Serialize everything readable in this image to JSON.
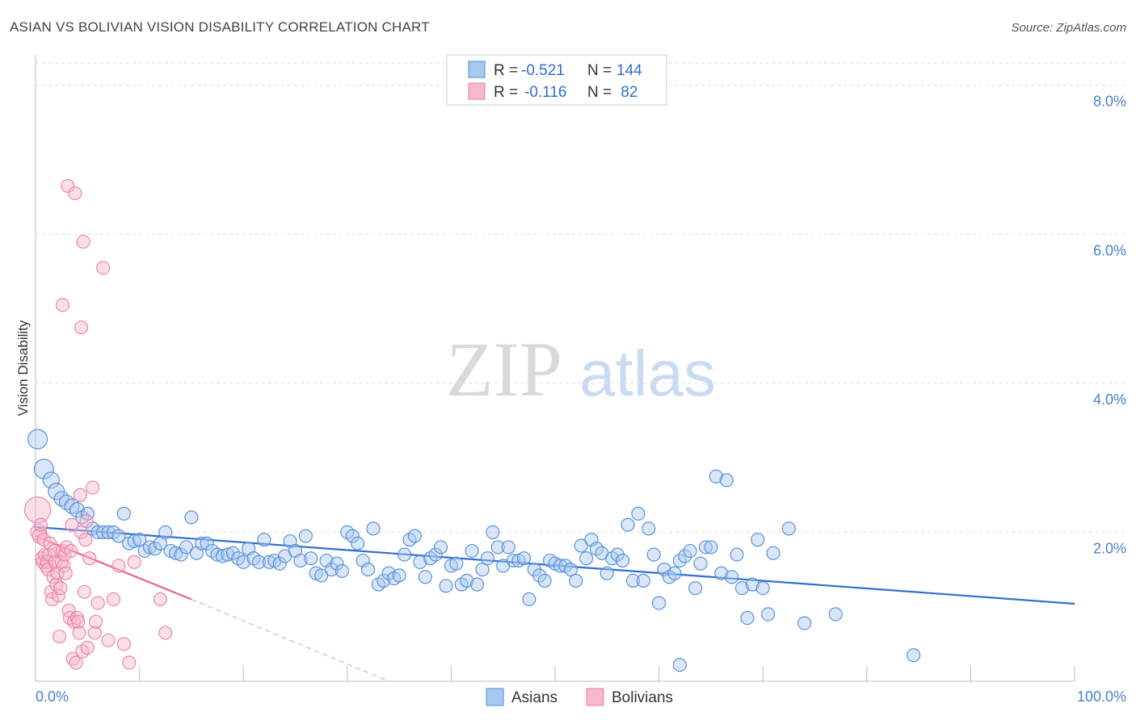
{
  "chart_data": {
    "type": "scatter",
    "title": "ASIAN VS BOLIVIAN VISION DISABILITY CORRELATION CHART",
    "source": "Source: ZipAtlas.com",
    "ylabel": "Vision Disability",
    "xlabel": "",
    "xlim": [
      0,
      100
    ],
    "ylim": [
      0,
      8.3
    ],
    "y_ticks": [
      {
        "value": 2,
        "label": "2.0%"
      },
      {
        "value": 4,
        "label": "4.0%"
      },
      {
        "value": 6,
        "label": "6.0%"
      },
      {
        "value": 8,
        "label": "8.0%"
      }
    ],
    "x_tick_labels": {
      "left": "0.0%",
      "right": "100.0%"
    },
    "x_minor_ticks": [
      10,
      20,
      30,
      40,
      50,
      60,
      70,
      80,
      90,
      100
    ],
    "grid": true,
    "watermark": {
      "zip": "ZIP",
      "atlas": "atlas"
    },
    "colors": {
      "asian_fill": "#a9c8f0",
      "asian_stroke": "#4f8bd9",
      "asian_line": "#2f6ed3",
      "bolivian_fill": "#f6b8cc",
      "bolivian_stroke": "#ea7fa3",
      "bolivian_line": "#e8608f",
      "grid": "#dddddd",
      "axis_text": "#4a7fd0"
    },
    "legend": {
      "rows": [
        {
          "r_label": "R = ",
          "r_value": "-0.521",
          "n_label": "N = ",
          "n_value": "144"
        },
        {
          "r_label": "R = ",
          "r_value": "-0.116",
          "n_label": "N = ",
          "n_value": " 82"
        }
      ]
    },
    "series": [
      {
        "name": "Asians",
        "trend": {
          "x": [
            0,
            100
          ],
          "y": [
            2.07,
            1.04
          ],
          "dashed_extension": null
        },
        "points": [
          [
            0.2,
            3.25,
            12
          ],
          [
            0.8,
            2.85,
            12
          ],
          [
            1.5,
            2.7,
            10
          ],
          [
            2.0,
            2.55,
            10
          ],
          [
            2.5,
            2.45,
            9
          ],
          [
            3.0,
            2.4,
            9
          ],
          [
            3.5,
            2.35,
            9
          ],
          [
            4.0,
            2.3,
            9
          ],
          [
            4.5,
            2.2,
            8
          ],
          [
            5.0,
            2.25,
            8
          ],
          [
            5.5,
            2.05,
            8
          ],
          [
            6.0,
            2.0,
            8
          ],
          [
            6.5,
            2.0,
            8
          ],
          [
            7.0,
            2.0,
            8
          ],
          [
            7.5,
            2.0,
            8
          ],
          [
            8.0,
            1.95,
            8
          ],
          [
            8.5,
            2.25,
            8
          ],
          [
            9.0,
            1.85,
            8
          ],
          [
            9.5,
            1.88,
            8
          ],
          [
            10.0,
            1.9,
            8
          ],
          [
            10.5,
            1.75,
            8
          ],
          [
            11.0,
            1.8,
            8
          ],
          [
            11.5,
            1.78,
            8
          ],
          [
            12.0,
            1.85,
            8
          ],
          [
            12.5,
            2.0,
            8
          ],
          [
            13.0,
            1.75,
            8
          ],
          [
            13.5,
            1.72,
            8
          ],
          [
            14.0,
            1.7,
            8
          ],
          [
            14.5,
            1.8,
            8
          ],
          [
            15.0,
            2.2,
            8
          ],
          [
            15.5,
            1.72,
            8
          ],
          [
            16.0,
            1.85,
            8
          ],
          [
            16.5,
            1.85,
            8
          ],
          [
            17.0,
            1.75,
            8
          ],
          [
            17.5,
            1.7,
            8
          ],
          [
            18.0,
            1.68,
            8
          ],
          [
            18.5,
            1.7,
            8
          ],
          [
            19.0,
            1.72,
            8
          ],
          [
            19.5,
            1.65,
            8
          ],
          [
            20.0,
            1.6,
            8
          ],
          [
            20.5,
            1.78,
            8
          ],
          [
            21.0,
            1.65,
            8
          ],
          [
            21.5,
            1.6,
            8
          ],
          [
            22.0,
            1.9,
            8
          ],
          [
            22.5,
            1.6,
            8
          ],
          [
            23.0,
            1.62,
            8
          ],
          [
            23.5,
            1.58,
            8
          ],
          [
            24.0,
            1.68,
            8
          ],
          [
            24.5,
            1.88,
            8
          ],
          [
            25.0,
            1.75,
            8
          ],
          [
            25.5,
            1.62,
            8
          ],
          [
            26.0,
            1.95,
            8
          ],
          [
            26.5,
            1.65,
            8
          ],
          [
            27.0,
            1.45,
            8
          ],
          [
            27.5,
            1.42,
            8
          ],
          [
            28.0,
            1.62,
            8
          ],
          [
            28.5,
            1.5,
            8
          ],
          [
            29.0,
            1.58,
            8
          ],
          [
            29.5,
            1.48,
            8
          ],
          [
            30.0,
            2.0,
            8
          ],
          [
            30.5,
            1.95,
            8
          ],
          [
            31.0,
            1.85,
            8
          ],
          [
            31.5,
            1.62,
            8
          ],
          [
            32.0,
            1.5,
            8
          ],
          [
            32.5,
            2.05,
            8
          ],
          [
            33.0,
            1.3,
            8
          ],
          [
            33.5,
            1.35,
            8
          ],
          [
            34.0,
            1.45,
            8
          ],
          [
            34.5,
            1.38,
            8
          ],
          [
            35.0,
            1.42,
            8
          ],
          [
            35.5,
            1.7,
            8
          ],
          [
            36.0,
            1.9,
            8
          ],
          [
            36.5,
            1.95,
            8
          ],
          [
            37.0,
            1.6,
            8
          ],
          [
            37.5,
            1.4,
            8
          ],
          [
            38.0,
            1.65,
            8
          ],
          [
            38.5,
            1.7,
            8
          ],
          [
            39.0,
            1.8,
            8
          ],
          [
            39.5,
            1.28,
            8
          ],
          [
            40.0,
            1.55,
            8
          ],
          [
            40.5,
            1.58,
            8
          ],
          [
            41.0,
            1.3,
            8
          ],
          [
            41.5,
            1.35,
            8
          ],
          [
            42.0,
            1.75,
            8
          ],
          [
            42.5,
            1.3,
            8
          ],
          [
            43.0,
            1.5,
            8
          ],
          [
            43.5,
            1.65,
            8
          ],
          [
            44.0,
            2.0,
            8
          ],
          [
            44.5,
            1.8,
            8
          ],
          [
            45.0,
            1.55,
            8
          ],
          [
            45.5,
            1.8,
            8
          ],
          [
            46.0,
            1.62,
            8
          ],
          [
            46.5,
            1.62,
            8
          ],
          [
            47.0,
            1.65,
            8
          ],
          [
            47.5,
            1.1,
            8
          ],
          [
            48.0,
            1.5,
            8
          ],
          [
            48.5,
            1.42,
            8
          ],
          [
            49.0,
            1.35,
            8
          ],
          [
            49.5,
            1.62,
            8
          ],
          [
            50.0,
            1.58,
            8
          ],
          [
            50.5,
            1.55,
            8
          ],
          [
            51.0,
            1.55,
            8
          ],
          [
            51.5,
            1.5,
            8
          ],
          [
            52.0,
            1.35,
            8
          ],
          [
            52.5,
            1.82,
            8
          ],
          [
            53.0,
            1.65,
            8
          ],
          [
            53.5,
            1.9,
            8
          ],
          [
            54.0,
            1.78,
            8
          ],
          [
            54.5,
            1.72,
            8
          ],
          [
            55.0,
            1.45,
            8
          ],
          [
            55.5,
            1.65,
            8
          ],
          [
            56.0,
            1.7,
            8
          ],
          [
            56.5,
            1.62,
            8
          ],
          [
            57.0,
            2.1,
            8
          ],
          [
            57.5,
            1.35,
            8
          ],
          [
            58.0,
            2.25,
            8
          ],
          [
            58.5,
            1.35,
            8
          ],
          [
            59.0,
            2.05,
            8
          ],
          [
            59.5,
            1.7,
            8
          ],
          [
            60.0,
            1.05,
            8
          ],
          [
            60.5,
            1.5,
            8
          ],
          [
            61.0,
            1.4,
            8
          ],
          [
            61.5,
            1.45,
            8
          ],
          [
            62.0,
            1.62,
            8
          ],
          [
            62.5,
            1.68,
            8
          ],
          [
            63.0,
            1.75,
            8
          ],
          [
            63.5,
            1.25,
            8
          ],
          [
            64.0,
            1.58,
            8
          ],
          [
            64.5,
            1.8,
            8
          ],
          [
            65.0,
            1.8,
            8
          ],
          [
            65.5,
            2.75,
            8
          ],
          [
            66.0,
            1.45,
            8
          ],
          [
            66.5,
            2.7,
            8
          ],
          [
            67.0,
            1.4,
            8
          ],
          [
            67.5,
            1.7,
            8
          ],
          [
            68.0,
            1.25,
            8
          ],
          [
            68.5,
            0.85,
            8
          ],
          [
            69.0,
            1.3,
            8
          ],
          [
            69.5,
            1.9,
            8
          ],
          [
            70.0,
            1.25,
            8
          ],
          [
            70.5,
            0.9,
            8
          ],
          [
            71.0,
            1.72,
            8
          ],
          [
            72.5,
            2.05,
            8
          ],
          [
            74.0,
            0.78,
            8
          ],
          [
            77.0,
            0.9,
            8
          ],
          [
            62.0,
            0.22,
            8
          ],
          [
            84.5,
            0.35,
            8
          ]
        ]
      },
      {
        "name": "Bolivians",
        "trend": {
          "x": [
            0,
            15
          ],
          "y": [
            1.95,
            1.1
          ],
          "dashed_extension": {
            "x": [
              15,
              34
            ],
            "y": [
              1.1,
              0.0
            ]
          }
        },
        "points": [
          [
            0.2,
            2.3,
            16
          ],
          [
            0.3,
            2.0,
            10
          ],
          [
            0.4,
            1.95,
            9
          ],
          [
            0.5,
            2.1,
            8
          ],
          [
            0.6,
            1.65,
            8
          ],
          [
            0.7,
            1.6,
            8
          ],
          [
            0.8,
            1.9,
            8
          ],
          [
            0.9,
            1.7,
            8
          ],
          [
            1.0,
            1.55,
            8
          ],
          [
            1.1,
            1.6,
            8
          ],
          [
            1.2,
            1.5,
            8
          ],
          [
            1.3,
            1.7,
            8
          ],
          [
            1.4,
            1.85,
            8
          ],
          [
            1.5,
            1.2,
            8
          ],
          [
            1.6,
            1.1,
            8
          ],
          [
            1.7,
            1.4,
            8
          ],
          [
            1.8,
            1.75,
            8
          ],
          [
            1.9,
            1.6,
            8
          ],
          [
            2.0,
            1.3,
            8
          ],
          [
            2.1,
            1.45,
            8
          ],
          [
            2.2,
            1.15,
            8
          ],
          [
            2.3,
            0.6,
            8
          ],
          [
            2.4,
            1.25,
            8
          ],
          [
            2.5,
            1.6,
            8
          ],
          [
            2.6,
            1.75,
            8
          ],
          [
            2.7,
            1.55,
            8
          ],
          [
            2.8,
            1.7,
            8
          ],
          [
            2.9,
            1.45,
            8
          ],
          [
            3.0,
            1.8,
            8
          ],
          [
            3.1,
            6.65,
            8
          ],
          [
            3.2,
            0.95,
            8
          ],
          [
            3.3,
            0.85,
            8
          ],
          [
            3.4,
            1.75,
            8
          ],
          [
            3.5,
            2.1,
            8
          ],
          [
            3.6,
            0.3,
            8
          ],
          [
            3.7,
            0.8,
            8
          ],
          [
            3.8,
            6.55,
            8
          ],
          [
            3.9,
            0.25,
            8
          ],
          [
            4.0,
            0.85,
            8
          ],
          [
            4.1,
            0.8,
            8
          ],
          [
            4.2,
            0.65,
            8
          ],
          [
            4.3,
            2.5,
            8
          ],
          [
            4.4,
            2.0,
            8
          ],
          [
            4.5,
            0.4,
            8
          ],
          [
            4.6,
            5.9,
            8
          ],
          [
            4.7,
            1.2,
            8
          ],
          [
            4.8,
            1.9,
            8
          ],
          [
            4.9,
            2.15,
            8
          ],
          [
            5.0,
            0.45,
            8
          ],
          [
            5.2,
            1.65,
            8
          ],
          [
            5.5,
            2.6,
            8
          ],
          [
            5.7,
            0.65,
            8
          ],
          [
            5.8,
            0.8,
            8
          ],
          [
            6.0,
            1.05,
            8
          ],
          [
            6.5,
            5.55,
            8
          ],
          [
            7.0,
            0.55,
            8
          ],
          [
            7.5,
            1.1,
            8
          ],
          [
            8.0,
            1.55,
            8
          ],
          [
            8.5,
            0.5,
            8
          ],
          [
            9.0,
            0.25,
            8
          ],
          [
            9.5,
            1.6,
            8
          ],
          [
            12.0,
            1.1,
            8
          ],
          [
            12.5,
            0.65,
            8
          ],
          [
            2.6,
            5.05,
            8
          ],
          [
            4.4,
            4.75,
            8
          ]
        ]
      }
    ]
  }
}
